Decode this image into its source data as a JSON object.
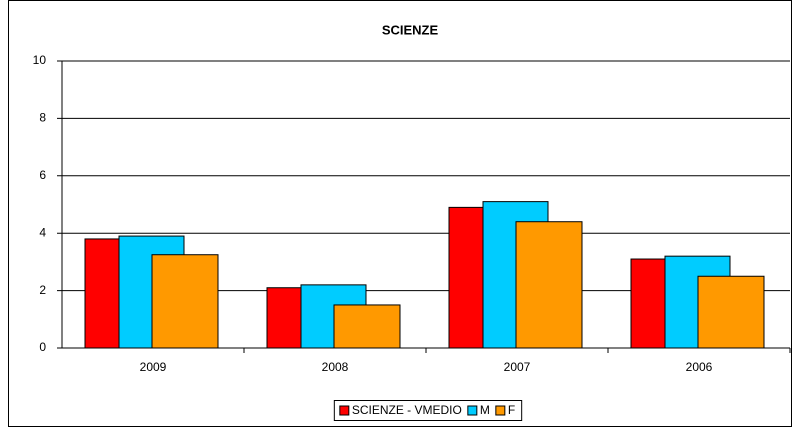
{
  "chart_data": {
    "type": "bar",
    "title": "SCIENZE",
    "categories": [
      "2009",
      "2008",
      "2007",
      "2006"
    ],
    "series": [
      {
        "name": "SCIENZE - VMEDIO",
        "color": "#ff0000",
        "values": [
          3.8,
          2.1,
          4.9,
          3.1
        ]
      },
      {
        "name": "M",
        "color": "#00ccff",
        "values": [
          3.9,
          2.2,
          5.1,
          3.2
        ]
      },
      {
        "name": "F",
        "color": "#ff9900",
        "values": [
          3.25,
          1.5,
          4.4,
          2.5
        ]
      }
    ],
    "ylim": [
      0,
      10
    ],
    "yticks": [
      0,
      2,
      4,
      6,
      8,
      10
    ],
    "grid": true,
    "legend": "bottom"
  }
}
